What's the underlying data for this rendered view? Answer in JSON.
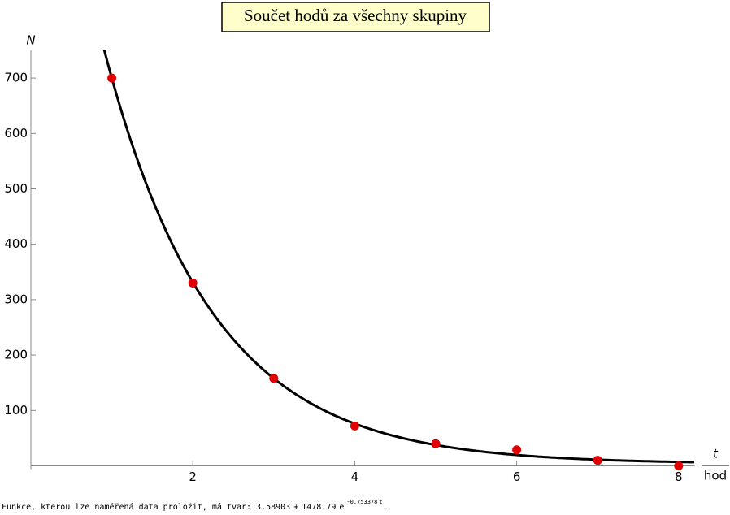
{
  "chart_data": {
    "type": "scatter",
    "title": "Součet hodů za všechny skupiny",
    "ylabel": "N",
    "xlabel": {
      "numerator": "t",
      "denominator": "hod"
    },
    "x": [
      1,
      2,
      3,
      4,
      5,
      6,
      7,
      8
    ],
    "series": [
      {
        "color": "#e00000",
        "values": [
          700,
          330,
          158,
          72,
          40,
          29,
          10,
          0
        ]
      }
    ],
    "fit": {
      "a": 3.58903,
      "b": 1478.79,
      "k": -0.753378,
      "color": "#000000"
    },
    "xlim": [
      0,
      8.2
    ],
    "ylim": [
      0,
      750
    ],
    "xticks": [
      2,
      4,
      6,
      8
    ],
    "yticks": [
      100,
      200,
      300,
      400,
      500,
      600,
      700
    ],
    "footer": {
      "text": "Funkce, kterou lze naměřená data proložit, má tvar:",
      "plus": "+",
      "e": "e",
      "var": "t",
      "end": "."
    }
  }
}
